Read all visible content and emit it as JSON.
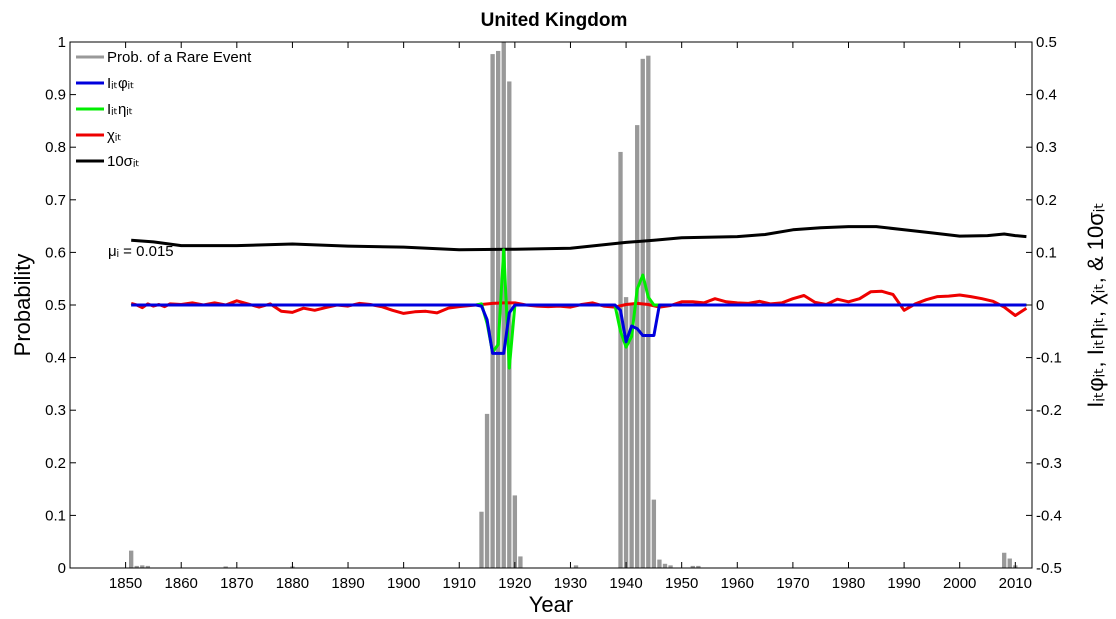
{
  "chart_data": {
    "type": "bar+line",
    "title": "United Kingdom",
    "xlabel": "Year",
    "ylabel_left": "Probability",
    "ylabel_right": "Iᵢₜφᵢₜ, Iᵢₜηᵢₜ, χᵢₜ, & 10σᵢₜ",
    "xlim": [
      1840,
      2013
    ],
    "ylim_left": [
      0,
      1
    ],
    "ylim_right": [
      -0.5,
      0.5
    ],
    "x_ticks": [
      1850,
      1860,
      1870,
      1880,
      1890,
      1900,
      1910,
      1920,
      1930,
      1940,
      1950,
      1960,
      1970,
      1980,
      1990,
      2000,
      2010
    ],
    "y_ticks_left": [
      "0",
      "0.1",
      "0.2",
      "0.3",
      "0.4",
      "0.5",
      "0.6",
      "0.7",
      "0.8",
      "0.9",
      "1"
    ],
    "y_ticks_right": [
      "-0.5",
      "-0.4",
      "-0.3",
      "-0.2",
      "-0.1",
      "0",
      "0.1",
      "0.2",
      "0.3",
      "0.4",
      "0.5"
    ],
    "grid": false,
    "legend_position": "top-left",
    "annotation": "μᵢ = 0.015",
    "legend": [
      {
        "key": "prob",
        "text": "Prob. of a Rare Event",
        "color": "#999999"
      },
      {
        "key": "phi",
        "text": "Iᵢₜφᵢₜ",
        "color": "#0000dd"
      },
      {
        "key": "eta",
        "text": "Iᵢₜηᵢₜ",
        "color": "#00ee00"
      },
      {
        "key": "chi",
        "text": "χᵢₜ",
        "color": "#ee0000"
      },
      {
        "key": "sigma",
        "text": "10σᵢₜ",
        "color": "#000000"
      }
    ],
    "bars": {
      "name": "Prob. of a Rare Event",
      "axis": "left",
      "color": "#999999",
      "x": [
        1851,
        1852,
        1853,
        1854,
        1868,
        1880,
        1914,
        1915,
        1916,
        1917,
        1918,
        1919,
        1920,
        1921,
        1931,
        1939,
        1940,
        1941,
        1942,
        1943,
        1944,
        1945,
        1946,
        1947,
        1948,
        1952,
        1953,
        2008,
        2009,
        2010
      ],
      "values": [
        0.033,
        0.004,
        0.005,
        0.004,
        0.003,
        0.003,
        0.107,
        0.293,
        0.977,
        0.983,
        1.0,
        0.925,
        0.138,
        0.022,
        0.005,
        0.791,
        0.515,
        0.5,
        0.842,
        0.968,
        0.974,
        0.13,
        0.016,
        0.008,
        0.005,
        0.004,
        0.004,
        0.029,
        0.018,
        0.005
      ]
    },
    "series": [
      {
        "key": "sigma",
        "name": "10σᵢₜ",
        "axis": "right",
        "color": "#000000",
        "x": [
          1851,
          1855,
          1860,
          1870,
          1880,
          1890,
          1900,
          1910,
          1920,
          1930,
          1940,
          1945,
          1950,
          1960,
          1965,
          1970,
          1975,
          1980,
          1985,
          1990,
          1995,
          2000,
          2005,
          2008,
          2010,
          2012
        ],
        "values": [
          0.123,
          0.12,
          0.113,
          0.113,
          0.116,
          0.112,
          0.11,
          0.105,
          0.106,
          0.108,
          0.119,
          0.123,
          0.128,
          0.13,
          0.134,
          0.143,
          0.147,
          0.149,
          0.149,
          0.143,
          0.137,
          0.131,
          0.132,
          0.135,
          0.132,
          0.13
        ]
      },
      {
        "key": "chi",
        "name": "χᵢₜ",
        "axis": "right",
        "color": "#ee0000",
        "x": [
          1851,
          1852,
          1853,
          1854,
          1855,
          1856,
          1857,
          1858,
          1860,
          1862,
          1864,
          1866,
          1868,
          1870,
          1872,
          1874,
          1876,
          1878,
          1880,
          1882,
          1884,
          1886,
          1888,
          1890,
          1892,
          1894,
          1896,
          1898,
          1900,
          1902,
          1904,
          1906,
          1908,
          1910,
          1912,
          1914,
          1916,
          1918,
          1920,
          1922,
          1924,
          1926,
          1928,
          1930,
          1932,
          1934,
          1936,
          1938,
          1940,
          1942,
          1944,
          1946,
          1948,
          1950,
          1952,
          1954,
          1956,
          1958,
          1960,
          1962,
          1964,
          1966,
          1968,
          1970,
          1972,
          1974,
          1976,
          1978,
          1980,
          1982,
          1984,
          1986,
          1988,
          1990,
          1992,
          1994,
          1996,
          1998,
          2000,
          2002,
          2004,
          2006,
          2008,
          2010,
          2012
        ],
        "values": [
          0.003,
          0.0,
          -0.005,
          0.002,
          -0.002,
          0.001,
          -0.003,
          0.002,
          0.001,
          0.004,
          0.0,
          0.004,
          0.0,
          0.008,
          0.002,
          -0.004,
          0.002,
          -0.012,
          -0.014,
          -0.006,
          -0.01,
          -0.005,
          0.0,
          -0.002,
          0.003,
          0.001,
          -0.003,
          -0.01,
          -0.016,
          -0.013,
          -0.012,
          -0.015,
          -0.006,
          -0.003,
          -0.001,
          0.001,
          0.003,
          0.004,
          0.004,
          0.0,
          -0.002,
          -0.003,
          -0.002,
          -0.004,
          0.001,
          0.004,
          -0.002,
          -0.004,
          0.001,
          0.003,
          0.001,
          -0.004,
          -0.001,
          0.006,
          0.006,
          0.004,
          0.012,
          0.006,
          0.004,
          0.003,
          0.007,
          0.002,
          0.004,
          0.012,
          0.018,
          0.005,
          0.001,
          0.011,
          0.006,
          0.012,
          0.025,
          0.026,
          0.02,
          -0.01,
          0.002,
          0.01,
          0.016,
          0.017,
          0.019,
          0.016,
          0.012,
          0.007,
          -0.004,
          -0.02,
          -0.006
        ]
      },
      {
        "key": "eta",
        "name": "Iᵢₜηᵢₜ",
        "axis": "right",
        "color": "#00ee00",
        "x": [
          1851,
          1913,
          1914,
          1915,
          1916,
          1917,
          1918,
          1919,
          1920,
          1921,
          1938,
          1939,
          1940,
          1941,
          1942,
          1943,
          1944,
          1945,
          1946,
          1947,
          2012
        ],
        "values": [
          0.0,
          0.0,
          0.002,
          -0.035,
          -0.09,
          -0.075,
          0.105,
          -0.12,
          0.0,
          0.0,
          0.0,
          -0.05,
          -0.08,
          -0.06,
          0.03,
          0.057,
          0.015,
          0.0,
          0.0,
          0.0,
          0.0
        ]
      },
      {
        "key": "phi",
        "name": "Iᵢₜφᵢₜ",
        "axis": "right",
        "color": "#0000dd",
        "x": [
          1851,
          1913,
          1914,
          1915,
          1916,
          1917,
          1918,
          1919,
          1920,
          1938,
          1939,
          1940,
          1941,
          1942,
          1943,
          1944,
          1945,
          1946,
          2012
        ],
        "values": [
          0.0,
          0.0,
          -0.002,
          -0.028,
          -0.092,
          -0.092,
          -0.092,
          -0.015,
          0.0,
          0.0,
          -0.01,
          -0.07,
          -0.04,
          -0.045,
          -0.058,
          -0.058,
          -0.058,
          0.0,
          0.0
        ]
      }
    ]
  }
}
